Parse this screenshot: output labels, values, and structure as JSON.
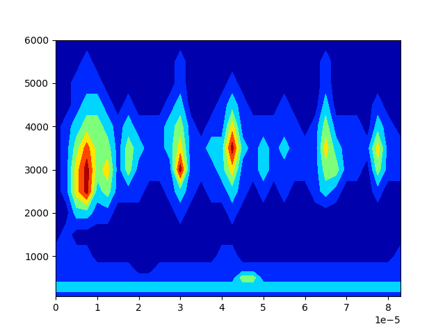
{
  "chart_data": {
    "type": "contourf",
    "color": "jet",
    "x": [
      0,
      2.5e-06,
      5e-06,
      7.5e-06,
      1e-05,
      1.25e-05,
      1.5e-05,
      1.75e-05,
      2e-05,
      2.25e-05,
      2.5e-05,
      2.75e-05,
      3e-05,
      3.25e-05,
      3.5e-05,
      3.75e-05,
      4e-05,
      4.25e-05,
      4.5e-05,
      4.75e-05,
      5e-05,
      5.25e-05,
      5.5e-05,
      5.75e-05,
      6e-05,
      6.25e-05,
      6.5e-05,
      6.75e-05,
      7e-05,
      7.25e-05,
      7.5e-05,
      7.75e-05,
      8e-05,
      8.3e-05
    ],
    "y": [
      70,
      300,
      500,
      700,
      1000,
      1500,
      2000,
      2500,
      3000,
      3500,
      4000,
      4500,
      5000,
      5500,
      6000
    ],
    "levels": [
      0,
      0.5,
      1.5,
      2.5,
      3.5,
      4.5,
      5.5,
      6
    ],
    "values": [
      [
        1,
        1,
        1,
        1,
        1,
        1,
        1,
        1,
        1,
        1,
        1,
        1,
        1,
        1,
        1,
        1,
        1,
        1,
        1,
        1,
        1,
        1,
        1,
        1,
        1,
        1,
        1,
        1,
        1,
        1,
        1,
        1,
        1,
        1
      ],
      [
        2,
        2,
        2,
        2,
        2,
        2,
        2,
        2,
        2,
        2,
        2,
        2,
        2,
        2,
        2,
        2,
        2,
        2,
        2,
        2,
        2,
        2,
        2,
        2,
        2,
        2,
        2,
        2,
        2,
        2,
        2,
        2,
        2,
        2
      ],
      [
        1,
        1,
        1,
        1,
        1,
        1,
        1,
        1,
        1,
        1,
        1,
        1,
        1,
        1,
        1,
        1,
        1,
        1,
        3,
        3,
        1,
        1,
        1,
        1,
        1,
        1,
        1,
        1,
        1,
        1,
        1,
        1,
        1,
        1
      ],
      [
        1,
        1,
        1,
        1,
        1,
        1,
        1,
        1,
        0,
        0,
        1,
        1,
        1,
        1,
        1,
        1,
        1,
        1,
        1,
        1,
        1,
        1,
        1,
        1,
        1,
        1,
        1,
        1,
        1,
        1,
        1,
        1,
        1,
        1
      ],
      [
        1,
        1,
        1,
        1,
        0,
        0,
        0,
        0,
        0,
        0,
        0,
        0,
        0,
        0,
        0,
        0,
        1,
        1,
        0,
        0,
        0,
        0,
        0,
        0,
        0,
        0,
        0,
        0,
        0,
        0,
        0,
        0,
        0,
        1
      ],
      [
        0,
        1,
        0,
        0,
        0,
        0,
        0,
        0,
        0,
        0,
        0,
        0,
        0,
        0,
        0,
        0,
        0,
        0,
        0,
        0,
        0,
        0,
        0,
        0,
        0,
        0,
        0,
        0,
        0,
        0,
        0,
        0,
        0,
        0
      ],
      [
        0,
        0,
        2,
        2,
        1,
        1,
        0,
        0,
        0,
        0,
        0,
        0,
        1,
        0,
        0,
        0,
        0,
        1,
        0,
        0,
        0,
        0,
        0,
        0,
        0,
        0,
        0,
        0,
        0,
        0,
        0,
        0,
        0,
        0
      ],
      [
        0,
        1,
        4,
        6,
        2,
        3,
        1,
        1,
        1,
        0,
        0,
        1,
        2,
        1,
        0,
        1,
        1,
        2,
        1,
        0,
        1,
        0,
        1,
        0,
        0,
        1,
        2,
        1,
        0,
        0,
        0,
        1,
        0,
        0
      ],
      [
        0,
        1,
        4,
        6,
        3,
        4,
        1,
        3,
        1,
        1,
        1,
        1,
        6,
        1,
        1,
        1,
        2,
        4,
        1,
        1,
        2,
        1,
        1,
        1,
        1,
        1,
        3,
        3,
        1,
        1,
        0,
        3,
        1,
        1
      ],
      [
        0,
        1,
        3,
        5,
        3,
        3,
        1,
        3,
        2,
        1,
        1,
        2,
        4,
        1,
        1,
        2,
        2,
        6,
        2,
        1,
        2,
        1,
        2,
        1,
        1,
        1,
        4,
        2,
        1,
        1,
        1,
        4,
        1,
        1
      ],
      [
        0,
        1,
        2,
        3,
        3,
        2,
        1,
        2,
        1,
        1,
        1,
        2,
        3,
        1,
        0,
        1,
        1,
        4,
        1,
        1,
        1,
        1,
        1,
        1,
        0,
        1,
        3,
        1,
        1,
        1,
        0,
        2,
        1,
        0
      ],
      [
        0,
        0,
        1,
        2,
        2,
        1,
        0,
        1,
        0,
        0,
        0,
        1,
        2,
        0,
        0,
        0,
        1,
        2,
        1,
        0,
        0,
        0,
        1,
        0,
        0,
        0,
        2,
        0,
        0,
        0,
        0,
        1,
        0,
        0
      ],
      [
        0,
        0,
        1,
        1,
        1,
        0,
        0,
        0,
        0,
        0,
        0,
        0,
        1,
        0,
        0,
        0,
        0,
        1,
        0,
        0,
        0,
        0,
        0,
        0,
        0,
        0,
        1,
        0,
        0,
        0,
        0,
        0,
        0,
        0
      ],
      [
        0,
        0,
        0,
        1,
        0,
        0,
        0,
        0,
        0,
        0,
        0,
        0,
        1,
        0,
        0,
        0,
        0,
        0,
        0,
        0,
        0,
        0,
        0,
        0,
        0,
        0,
        1,
        0,
        0,
        0,
        0,
        0,
        0,
        0
      ],
      [
        0,
        0,
        0,
        0,
        0,
        0,
        0,
        0,
        0,
        0,
        0,
        0,
        0,
        0,
        0,
        0,
        0,
        0,
        0,
        0,
        0,
        0,
        0,
        0,
        0,
        0,
        0,
        0,
        0,
        0,
        0,
        0,
        0,
        0
      ]
    ],
    "xlim": [
      0,
      8.3e-05
    ],
    "xticks": [
      0,
      {
        "value": 1e-05,
        "label": "1"
      },
      {
        "value": 2e-05,
        "label": "2"
      },
      {
        "value": 3e-05,
        "label": "3"
      },
      {
        "value": 4e-05,
        "label": "4"
      },
      {
        "value": 5e-05,
        "label": "5"
      },
      {
        "value": 6e-05,
        "label": "6"
      },
      {
        "value": 7e-05,
        "label": "7"
      },
      {
        "value": 8e-05,
        "label": "8"
      }
    ],
    "ylim": [
      70,
      6000
    ],
    "yticks": [
      1000,
      2000,
      3000,
      4000,
      5000,
      6000
    ],
    "annotations": [
      "1e−5"
    ]
  }
}
